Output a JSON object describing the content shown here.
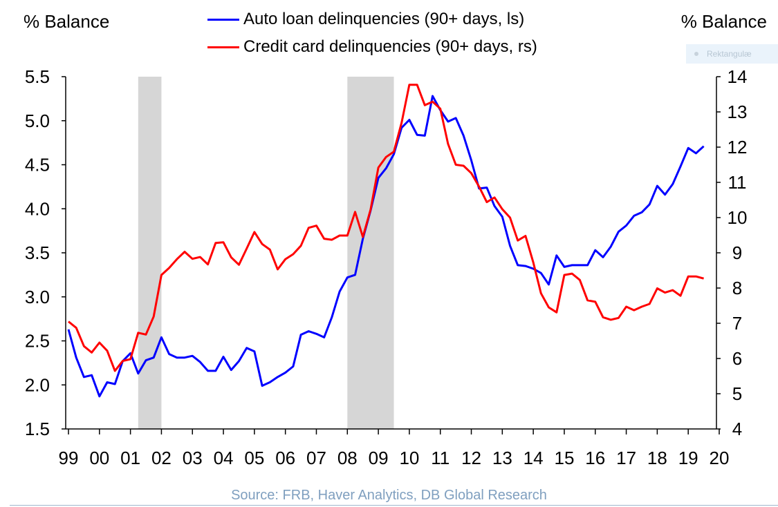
{
  "axis_titles": {
    "left": "% Balance",
    "right": "% Balance"
  },
  "source": "Source: FRB, Haver Analytics, DB Global Research",
  "overlay_label": "Rektangulæ",
  "chart_data": {
    "type": "line",
    "title": "",
    "xlabel": "",
    "ylabel_left": "% Balance",
    "ylabel_right": "% Balance",
    "xlim": [
      1999,
      2020
    ],
    "ylim_left": [
      1.5,
      5.5
    ],
    "ylim_right": [
      4,
      14
    ],
    "left_ticks": [
      "5.5",
      "5.0",
      "4.5",
      "4.0",
      "3.5",
      "3.0",
      "2.5",
      "2.0",
      "1.5"
    ],
    "right_ticks": [
      "14",
      "13",
      "12",
      "11",
      "10",
      "9",
      "8",
      "7",
      "6",
      "5",
      "4"
    ],
    "x_ticks": [
      "99",
      "00",
      "01",
      "02",
      "03",
      "04",
      "05",
      "06",
      "07",
      "08",
      "09",
      "10",
      "11",
      "12",
      "13",
      "14",
      "15",
      "16",
      "17",
      "18",
      "19",
      "20"
    ],
    "recessions": [
      [
        2001.25,
        2002.0
      ],
      [
        2008.0,
        2009.5
      ]
    ],
    "series": [
      {
        "name": "Auto loan delinquencies (90+ days, ls)",
        "color": "#0000ff",
        "axis": "left",
        "x": [
          1999.0,
          1999.25,
          1999.5,
          1999.75,
          2000.0,
          2000.25,
          2000.5,
          2000.75,
          2001.0,
          2001.25,
          2001.5,
          2001.75,
          2002.0,
          2002.25,
          2002.5,
          2002.75,
          2003.0,
          2003.25,
          2003.5,
          2003.75,
          2004.0,
          2004.25,
          2004.5,
          2004.75,
          2005.0,
          2005.25,
          2005.5,
          2005.75,
          2006.0,
          2006.25,
          2006.5,
          2006.75,
          2007.0,
          2007.25,
          2007.5,
          2007.75,
          2008.0,
          2008.25,
          2008.5,
          2008.75,
          2009.0,
          2009.25,
          2009.5,
          2009.75,
          2010.0,
          2010.25,
          2010.5,
          2010.75,
          2011.0,
          2011.25,
          2011.5,
          2011.75,
          2012.0,
          2012.25,
          2012.5,
          2012.75,
          2013.0,
          2013.25,
          2013.5,
          2013.75,
          2014.0,
          2014.25,
          2014.5,
          2014.75,
          2015.0,
          2015.25,
          2015.5,
          2015.75,
          2016.0,
          2016.25,
          2016.5,
          2016.75,
          2017.0,
          2017.25,
          2017.5,
          2017.75,
          2018.0,
          2018.25,
          2018.5,
          2018.75,
          2019.0,
          2019.25,
          2019.5
        ],
        "values": [
          2.63,
          2.31,
          2.09,
          2.11,
          1.87,
          2.03,
          2.01,
          2.27,
          2.36,
          2.13,
          2.28,
          2.31,
          2.54,
          2.35,
          2.31,
          2.31,
          2.33,
          2.26,
          2.16,
          2.16,
          2.32,
          2.17,
          2.27,
          2.42,
          2.38,
          1.99,
          2.03,
          2.09,
          2.14,
          2.21,
          2.57,
          2.61,
          2.58,
          2.54,
          2.77,
          3.06,
          3.22,
          3.25,
          3.66,
          3.98,
          4.35,
          4.46,
          4.62,
          4.92,
          5.01,
          4.84,
          4.83,
          5.28,
          5.12,
          4.99,
          5.03,
          4.83,
          4.55,
          4.23,
          4.24,
          4.03,
          3.91,
          3.58,
          3.36,
          3.35,
          3.32,
          3.27,
          3.14,
          3.47,
          3.34,
          3.36,
          3.36,
          3.36,
          3.53,
          3.45,
          3.57,
          3.74,
          3.81,
          3.92,
          3.96,
          4.05,
          4.26,
          4.16,
          4.28,
          4.48,
          4.69,
          4.63,
          4.71
        ]
      },
      {
        "name": "Credit card delinquencies (90+ days, rs)",
        "color": "#ff0000",
        "axis": "right",
        "x": [
          1999.0,
          1999.25,
          1999.5,
          1999.75,
          2000.0,
          2000.25,
          2000.5,
          2000.75,
          2001.0,
          2001.25,
          2001.5,
          2001.75,
          2002.0,
          2002.25,
          2002.5,
          2002.75,
          2003.0,
          2003.25,
          2003.5,
          2003.75,
          2004.0,
          2004.25,
          2004.5,
          2004.75,
          2005.0,
          2005.25,
          2005.5,
          2005.75,
          2006.0,
          2006.25,
          2006.5,
          2006.75,
          2007.0,
          2007.25,
          2007.5,
          2007.75,
          2008.0,
          2008.25,
          2008.5,
          2008.75,
          2009.0,
          2009.25,
          2009.5,
          2009.75,
          2010.0,
          2010.25,
          2010.5,
          2010.75,
          2011.0,
          2011.25,
          2011.5,
          2011.75,
          2012.0,
          2012.25,
          2012.5,
          2012.75,
          2013.0,
          2013.25,
          2013.5,
          2013.75,
          2014.0,
          2014.25,
          2014.5,
          2014.75,
          2015.0,
          2015.25,
          2015.5,
          2015.75,
          2016.0,
          2016.25,
          2016.5,
          2016.75,
          2017.0,
          2017.25,
          2017.5,
          2017.75,
          2018.0,
          2018.25,
          2018.5,
          2018.75,
          2019.0,
          2019.25,
          2019.5
        ],
        "values": [
          7.05,
          6.87,
          6.35,
          6.17,
          6.45,
          6.22,
          5.65,
          5.93,
          5.98,
          6.73,
          6.68,
          7.19,
          8.37,
          8.57,
          8.82,
          9.03,
          8.83,
          8.88,
          8.67,
          9.28,
          9.3,
          8.87,
          8.66,
          9.12,
          9.59,
          9.25,
          9.09,
          8.53,
          8.82,
          8.96,
          9.2,
          9.71,
          9.77,
          9.4,
          9.37,
          9.49,
          9.49,
          10.16,
          9.45,
          10.23,
          11.42,
          11.72,
          11.87,
          12.69,
          13.77,
          13.77,
          13.19,
          13.29,
          13.09,
          12.09,
          11.5,
          11.47,
          11.26,
          10.88,
          10.44,
          10.57,
          10.24,
          10.0,
          9.35,
          9.48,
          8.73,
          7.85,
          7.45,
          7.31,
          8.37,
          8.41,
          8.23,
          7.65,
          7.61,
          7.17,
          7.1,
          7.15,
          7.47,
          7.37,
          7.47,
          7.55,
          7.99,
          7.87,
          7.94,
          7.78,
          8.33,
          8.33,
          8.27
        ]
      }
    ]
  }
}
